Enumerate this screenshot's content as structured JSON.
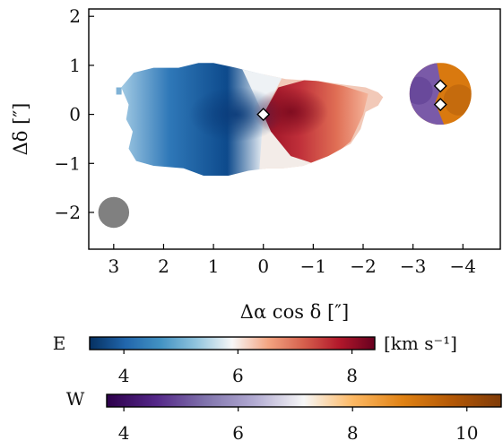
{
  "chart_data": {
    "type": "heatmap",
    "title": "",
    "xlabel": "Δα cos δ [″]",
    "ylabel": "Δδ [″]",
    "xlim": [
      3.5,
      -4.75
    ],
    "ylim": [
      -2.75,
      2.15
    ],
    "xticks": [
      3,
      2,
      1,
      0,
      -1,
      -2,
      -3,
      -4
    ],
    "xtick_labels": [
      "3",
      "2",
      "1",
      "0",
      "−1",
      "−2",
      "−3",
      "−4"
    ],
    "yticks": [
      2,
      1,
      0,
      -1,
      -2
    ],
    "ytick_labels": [
      "2",
      "1",
      "0",
      "−1",
      "−2"
    ],
    "beam": {
      "x": 3.0,
      "y": -2.0,
      "diameter": 0.62,
      "color": "#808080"
    },
    "sources": [
      {
        "name": "E",
        "center": [
          0,
          0
        ],
        "kind": "rotating disk",
        "velocity_range": [
          3.4,
          8.4
        ],
        "cmap": "blue-white-red",
        "marker": [
          0,
          0
        ]
      },
      {
        "name": "W",
        "center": [
          -3.55,
          0.42
        ],
        "kind": "compact",
        "velocity_range": [
          3.7,
          10.6
        ],
        "cmap": "purple-white-orange",
        "markers": [
          [
            -3.55,
            0.58
          ],
          [
            -3.55,
            0.2
          ]
        ]
      }
    ],
    "colorbars": [
      {
        "label": "E",
        "unit": "[km s⁻¹]",
        "vmin": 3.4,
        "vmax": 8.4,
        "ticks": [
          4,
          6,
          8
        ],
        "tick_labels": [
          "4",
          "6",
          "8"
        ],
        "colors": [
          "#053061",
          "#2166ac",
          "#4393c3",
          "#92c5de",
          "#f7f7f7",
          "#f4a582",
          "#d6604d",
          "#b2182b",
          "#67001f"
        ]
      },
      {
        "label": "W",
        "unit": "",
        "vmin": 3.7,
        "vmax": 10.6,
        "ticks": [
          4,
          6,
          8,
          10
        ],
        "tick_labels": [
          "4",
          "6",
          "8",
          "10"
        ],
        "colors": [
          "#2d004b",
          "#542788",
          "#8073ac",
          "#b2abd2",
          "#f7f7f7",
          "#fdb863",
          "#e08214",
          "#b35806",
          "#7f3b08"
        ]
      }
    ]
  }
}
